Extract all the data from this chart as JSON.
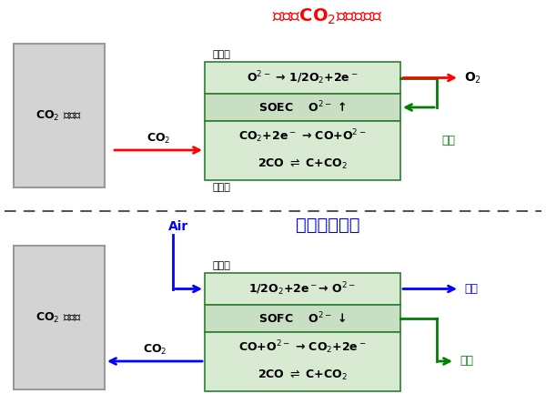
{
  "title_top": "充電（CO$_2$電気分解）",
  "title_bottom": "放電（発電）",
  "title_color_top": "#ff0000",
  "title_color_bottom": "#0000ff",
  "tank_label_line1": "CO$_2$ タンク",
  "box_bg_light": "#d9ead3",
  "box_bg_mid": "#c8dfc4",
  "box_border": "#2e7d32",
  "tank_bg": "#d3d3d3",
  "tank_border": "#999999",
  "divider_color": "#555555",
  "label_kuki": "空気極",
  "label_nenryo": "燃料極",
  "label_O2": "O$_2$",
  "label_denryoku": "電力",
  "label_haiki": "排気",
  "label_CO2": "CO$_2$",
  "label_air": "Air"
}
